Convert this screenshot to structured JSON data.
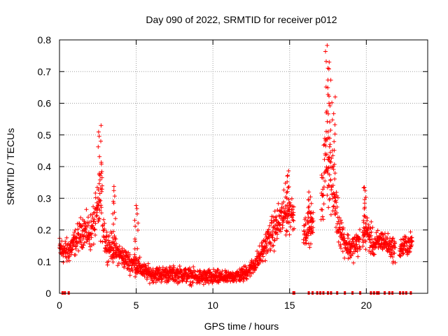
{
  "chart_data": {
    "type": "scatter",
    "title": "Day 090 of 2022, SRMTID for receiver p012",
    "xlabel": "GPS time / hours",
    "ylabel": "SRMTID / TECUs",
    "xlim": [
      0,
      24
    ],
    "ylim": [
      0,
      0.8
    ],
    "xticks": [
      0,
      5,
      10,
      15,
      20
    ],
    "xtick_labels": [
      "0",
      "5",
      "10",
      "15",
      "20"
    ],
    "yticks": [
      0,
      0.1,
      0.2,
      0.3,
      0.4,
      0.5,
      0.6,
      0.7,
      0.8
    ],
    "ytick_labels": [
      "0",
      "0.1",
      "0.2",
      "0.3",
      "0.4",
      "0.5",
      "0.6",
      "0.7",
      "0.8"
    ],
    "grid": true,
    "marker": "+",
    "series_color": "#ff0000",
    "envelope": {
      "x": [
        0.0,
        0.5,
        1.0,
        1.5,
        2.0,
        2.4,
        2.7,
        3.0,
        3.5,
        4.0,
        4.5,
        5.0,
        5.5,
        6.0,
        7.0,
        8.0,
        9.0,
        10.0,
        11.0,
        12.0,
        12.5,
        13.0,
        13.5,
        14.0,
        14.5,
        15.0,
        15.5,
        16.0,
        16.5,
        17.0,
        17.4,
        17.8,
        18.2,
        18.6,
        19.0,
        19.5,
        20.0,
        20.5,
        21.0,
        21.5,
        22.0,
        22.5,
        23.0
      ],
      "mean": [
        0.14,
        0.13,
        0.16,
        0.2,
        0.19,
        0.24,
        0.3,
        0.16,
        0.14,
        0.12,
        0.1,
        0.09,
        0.07,
        0.06,
        0.06,
        0.06,
        0.05,
        0.05,
        0.05,
        0.06,
        0.08,
        0.11,
        0.16,
        0.2,
        0.24,
        0.26,
        0.24,
        0.2,
        0.21,
        0.25,
        0.45,
        0.33,
        0.22,
        0.16,
        0.14,
        0.16,
        0.2,
        0.15,
        0.17,
        0.15,
        0.13,
        0.15,
        0.16
      ],
      "spread": [
        0.05,
        0.05,
        0.05,
        0.06,
        0.07,
        0.09,
        0.14,
        0.06,
        0.05,
        0.04,
        0.04,
        0.04,
        0.03,
        0.03,
        0.03,
        0.03,
        0.03,
        0.03,
        0.02,
        0.03,
        0.03,
        0.04,
        0.05,
        0.07,
        0.08,
        0.08,
        0.07,
        0.06,
        0.06,
        0.08,
        0.18,
        0.12,
        0.08,
        0.05,
        0.05,
        0.05,
        0.07,
        0.05,
        0.04,
        0.04,
        0.05,
        0.04,
        0.04
      ]
    },
    "peaks": [
      {
        "x": 2.65,
        "y": 0.53
      },
      {
        "x": 3.55,
        "y": 0.34
      },
      {
        "x": 5.0,
        "y": 0.28
      },
      {
        "x": 14.85,
        "y": 0.39
      },
      {
        "x": 16.3,
        "y": 0.32
      },
      {
        "x": 17.45,
        "y": 0.79
      },
      {
        "x": 17.6,
        "y": 0.73
      },
      {
        "x": 17.85,
        "y": 0.62
      },
      {
        "x": 19.9,
        "y": 0.34
      }
    ],
    "gaps": [
      [
        15.3,
        15.9
      ],
      [
        16.55,
        17.05
      ],
      [
        19.6,
        19.75
      ],
      [
        21.9,
        22.15
      ]
    ],
    "zero_markers": [
      0.2,
      0.35,
      0.6,
      15.25,
      15.3,
      16.25,
      16.5,
      16.8,
      17.0,
      17.2,
      17.5,
      17.7,
      18.1,
      18.6,
      19.1,
      19.6,
      20.3,
      20.5,
      20.7,
      20.8,
      21.2,
      21.5,
      21.7,
      22.2,
      22.4,
      22.6,
      22.9
    ]
  }
}
